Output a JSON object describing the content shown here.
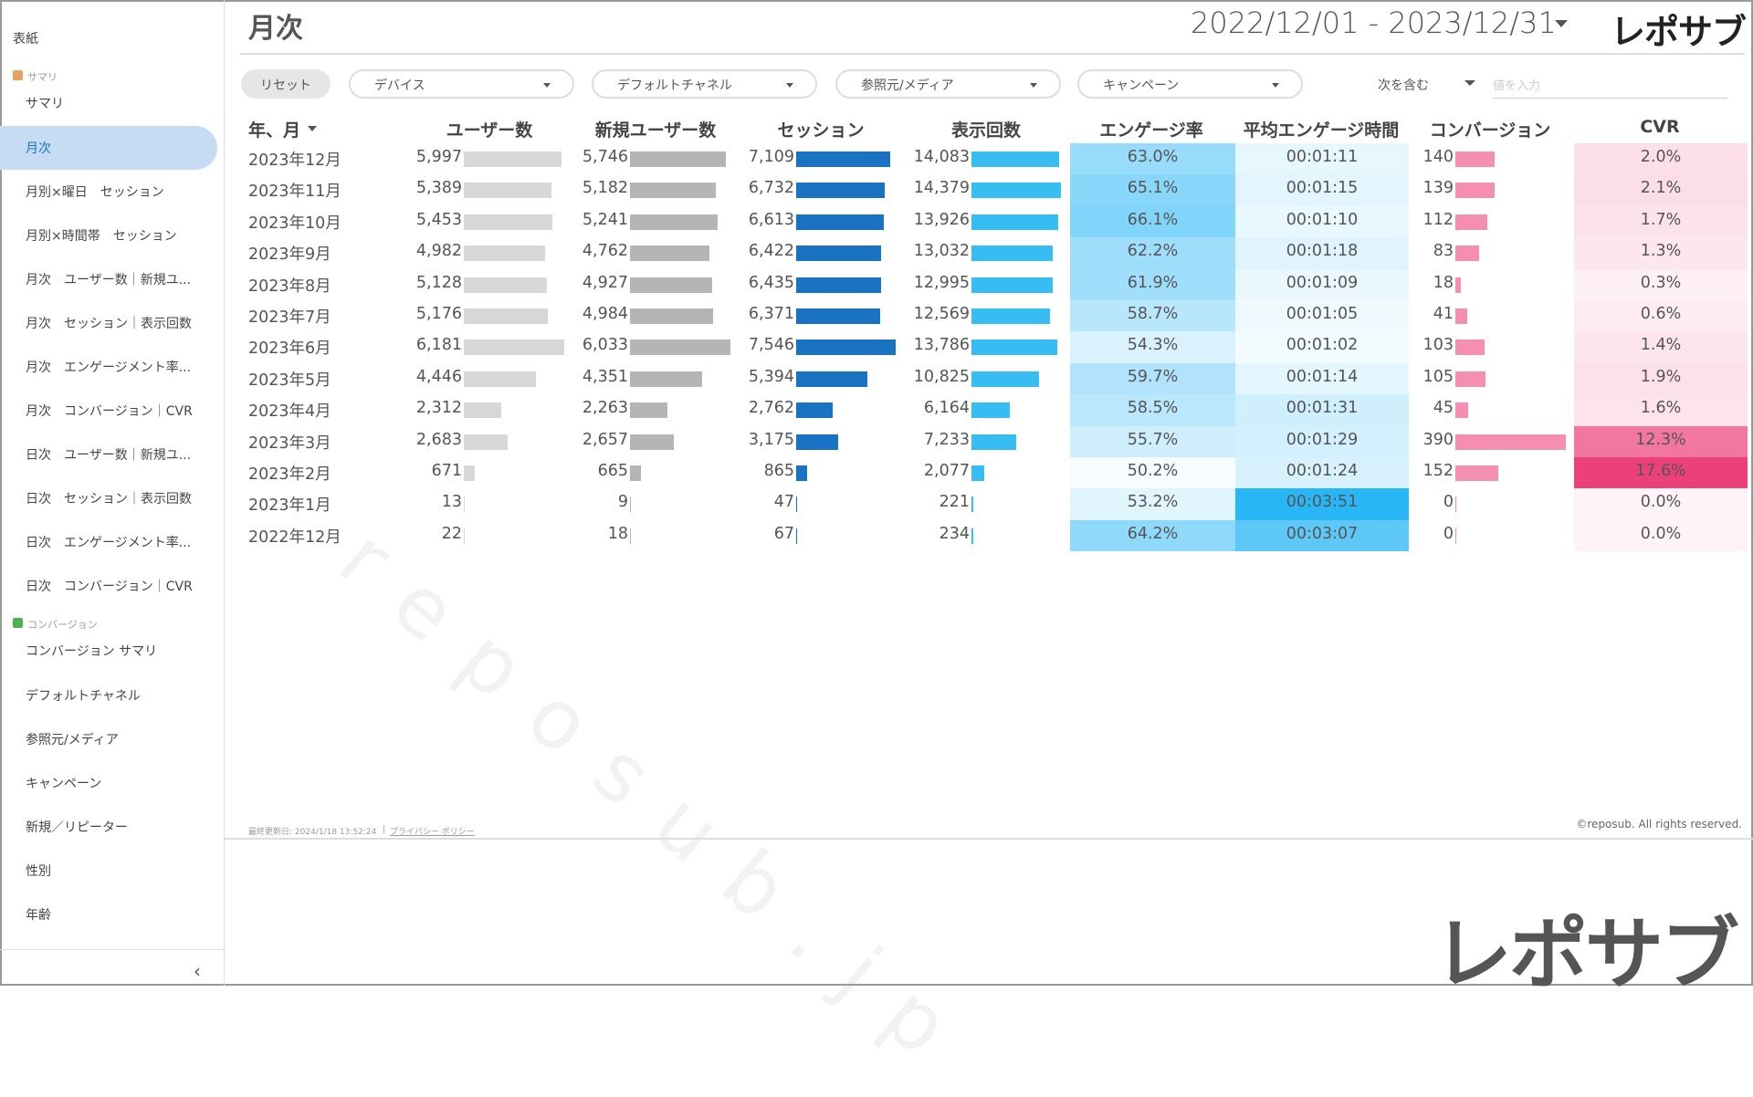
{
  "header": {
    "title": "月次",
    "date_range": "2022/12/01 - 2023/12/31",
    "logo": "レポサブ"
  },
  "sidebar": {
    "cover": "表紙",
    "groups": [
      {
        "title": "サマリ",
        "items": [
          "サマリ",
          "月次",
          "月別×曜日　セッション",
          "月別×時間帯　セッション",
          "月次　ユーザー数｜新規ユ...",
          "月次　セッション｜表示回数",
          "月次　エンゲージメント率...",
          "月次　コンバージョン｜CVR",
          "日次　ユーザー数｜新規ユ...",
          "日次　セッション｜表示回数",
          "日次　エンゲージメント率...",
          "日次　コンバージョン｜CVR"
        ]
      },
      {
        "title": "コンバージョン",
        "items": [
          "コンバージョン サマリ",
          "デフォルトチャネル",
          "参照元/メディア",
          "キャンペーン",
          "新規／リピーター",
          "性別",
          "年齢"
        ]
      }
    ]
  },
  "filters": {
    "reset": "リセット",
    "dropdowns": [
      "デバイス",
      "デフォルトチャネル",
      "参照元/メディア",
      "キャンペーン"
    ],
    "match": "次を含む",
    "input_placeholder": "値を入力"
  },
  "table": {
    "columns": [
      "年、月",
      "ユーザー数",
      "新規ユーザー数",
      "セッション",
      "表示回数",
      "エンゲージ率",
      "平均エンゲージ時間",
      "コンバージョン",
      "CVR"
    ],
    "rows": [
      [
        "2023年12月",
        "5,997",
        "5,746",
        "7,109",
        "14,083",
        "63.0%",
        "00:01:11",
        "140",
        "2.0%"
      ],
      [
        "2023年11月",
        "5,389",
        "5,182",
        "6,732",
        "14,379",
        "65.1%",
        "00:01:15",
        "139",
        "2.1%"
      ],
      [
        "2023年10月",
        "5,453",
        "5,241",
        "6,613",
        "13,926",
        "66.1%",
        "00:01:10",
        "112",
        "1.7%"
      ],
      [
        "2023年9月",
        "4,982",
        "4,762",
        "6,422",
        "13,032",
        "62.2%",
        "00:01:18",
        "83",
        "1.3%"
      ],
      [
        "2023年8月",
        "5,128",
        "4,927",
        "6,435",
        "12,995",
        "61.9%",
        "00:01:09",
        "18",
        "0.3%"
      ],
      [
        "2023年7月",
        "5,176",
        "4,984",
        "6,371",
        "12,569",
        "58.7%",
        "00:01:05",
        "41",
        "0.6%"
      ],
      [
        "2023年6月",
        "6,181",
        "6,033",
        "7,546",
        "13,786",
        "54.3%",
        "00:01:02",
        "103",
        "1.4%"
      ],
      [
        "2023年5月",
        "4,446",
        "4,351",
        "5,394",
        "10,825",
        "59.7%",
        "00:01:14",
        "105",
        "1.9%"
      ],
      [
        "2023年4月",
        "2,312",
        "2,263",
        "2,762",
        "6,164",
        "58.5%",
        "00:01:31",
        "45",
        "1.6%"
      ],
      [
        "2023年3月",
        "2,683",
        "2,657",
        "3,175",
        "7,233",
        "55.7%",
        "00:01:29",
        "390",
        "12.3%"
      ],
      [
        "2023年2月",
        "671",
        "665",
        "865",
        "2,077",
        "50.2%",
        "00:01:24",
        "152",
        "17.6%"
      ],
      [
        "2023年1月",
        "13",
        "9",
        "47",
        "221",
        "53.2%",
        "00:03:51",
        "0",
        "0.0%"
      ],
      [
        "2022年12月",
        "22",
        "18",
        "67",
        "234",
        "64.2%",
        "00:03:07",
        "0",
        "0.0%"
      ]
    ]
  },
  "footer": {
    "updated": "最終更新日: 2024/1/18 13:52:24",
    "separator": "|",
    "privacy": "プライバシー ポリシー",
    "copyright": "©reposub. All rights reserved."
  },
  "watermark": "reposub.jp",
  "bottom_logo": "レポサブ"
}
